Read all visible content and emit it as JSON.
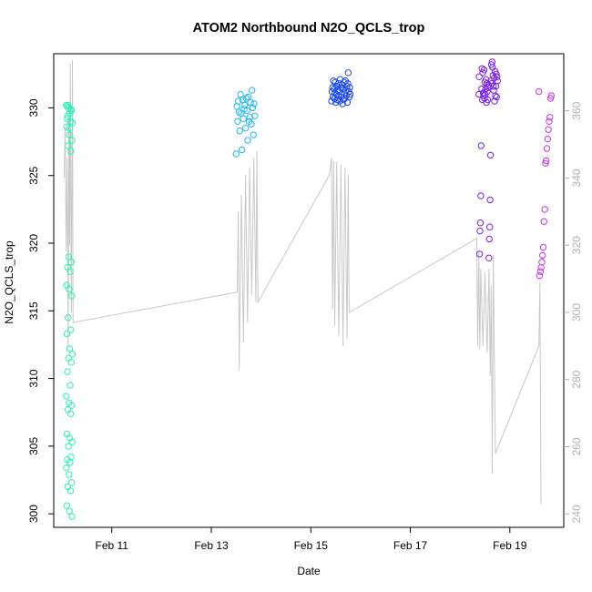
{
  "chart_data": {
    "type": "scatter",
    "title": "ATOM2 Northbound N2O_QCLS_trop",
    "xlabel": "Date",
    "ylabel": "N2O_QCLS_trop",
    "xlim": [
      "2017-02-09T20:00",
      "2017-02-20T02:00"
    ],
    "ylim": [
      299,
      334
    ],
    "y2lim": [
      236,
      377
    ],
    "x_ticks": [
      {
        "label": "Feb 11",
        "date": "2017-02-11"
      },
      {
        "label": "Feb 13",
        "date": "2017-02-13"
      },
      {
        "label": "Feb 15",
        "date": "2017-02-15"
      },
      {
        "label": "Feb 17",
        "date": "2017-02-17"
      },
      {
        "label": "Feb 19",
        "date": "2017-02-19"
      }
    ],
    "y_ticks": [
      300,
      305,
      310,
      315,
      320,
      325,
      330
    ],
    "y2_ticks": [
      240,
      260,
      280,
      300,
      320,
      340,
      360
    ],
    "grid": false,
    "legend": "none",
    "series_scatter": [
      {
        "color": "#2ef0b8",
        "time_range": [
          "2017-02-10T02:00",
          "2017-02-10T05:00"
        ],
        "values": [
          330.2,
          330.0,
          329.8,
          329.4,
          329.0,
          328.6,
          328.0,
          327.6,
          327.2,
          326.8,
          330.1,
          329.6,
          328.9,
          319.0,
          318.6,
          318.2,
          317.9,
          316.9,
          316.6,
          316.1,
          314.5,
          313.6,
          313.3,
          312.2,
          311.8,
          311.5,
          311.2,
          310.5,
          309.5,
          308.7,
          308.2,
          308.0,
          307.7,
          307.4,
          305.9,
          305.6,
          305.3,
          305.0,
          304.2,
          304.0,
          303.8,
          303.4,
          302.9,
          302.3,
          302.0,
          301.7,
          300.6,
          300.2,
          299.8,
          330.2,
          329.9,
          329.2,
          328.5
        ]
      },
      {
        "color": "#1fb8f5",
        "time_range": [
          "2017-02-13T12:00",
          "2017-02-13T21:00"
        ],
        "values": [
          326.6,
          326.9,
          327.6,
          328.0,
          328.3,
          328.5,
          328.8,
          329.0,
          329.2,
          329.0,
          329.4,
          329.6,
          329.8,
          330.0,
          329.7,
          330.2,
          330.4,
          330.1,
          330.6,
          330.8,
          330.3,
          331.0,
          330.7,
          331.3,
          330.5,
          329.9,
          329.3
        ]
      },
      {
        "color": "#1f4af2",
        "time_range": [
          "2017-02-15T10:00",
          "2017-02-15T19:00"
        ],
        "values": [
          330.5,
          331.0,
          331.5,
          330.8,
          331.2,
          332.6,
          331.8,
          330.4,
          331.6,
          330.9,
          331.3,
          332.0,
          330.7,
          331.1,
          331.9,
          330.6,
          331.4,
          330.3,
          331.7,
          331.0,
          330.8,
          331.5,
          332.1,
          330.5,
          331.2,
          331.8,
          330.9,
          331.3,
          330.6,
          331.6,
          331.0,
          330.4,
          331.9,
          331.1,
          330.7,
          331.4,
          332.0,
          330.8,
          331.5,
          331.2
        ]
      },
      {
        "color": "#7a1fef",
        "time_range": [
          "2017-02-18T09:00",
          "2017-02-18T18:00"
        ],
        "values": [
          331.0,
          331.5,
          332.0,
          330.6,
          332.3,
          331.2,
          330.8,
          331.8,
          332.5,
          330.4,
          331.6,
          332.1,
          330.9,
          331.4,
          332.7,
          331.0,
          330.5,
          331.9,
          332.2,
          330.7,
          331.3,
          332.8,
          331.6,
          330.9,
          332.4,
          331.1,
          333.0,
          332.6,
          333.4,
          330.6,
          331.8,
          332.9,
          333.2,
          331.4,
          332.0,
          327.2,
          326.5,
          323.5,
          323.2,
          321.5,
          321.2,
          320.9,
          320.3,
          319.2,
          318.9,
          332.3,
          331.7
        ]
      },
      {
        "color": "#cc33e8",
        "time_range": [
          "2017-02-19T14:00",
          "2017-02-19T20:00"
        ],
        "values": [
          331.2,
          330.9,
          330.7,
          329.3,
          329.0,
          328.4,
          327.7,
          327.0,
          326.1,
          325.9,
          322.5,
          321.6,
          319.7,
          319.1,
          318.6,
          318.2,
          317.9,
          317.6
        ]
      }
    ],
    "series_line_y2": {
      "color": "#c9c9c9",
      "points": [
        [
          "2017-02-10T01:00",
          340
        ],
        [
          "2017-02-10T01:30",
          355
        ],
        [
          "2017-02-10T02:00",
          318
        ],
        [
          "2017-02-10T02:30",
          346
        ],
        [
          "2017-02-10T03:00",
          290
        ],
        [
          "2017-02-10T03:20",
          362
        ],
        [
          "2017-02-10T03:40",
          320
        ],
        [
          "2017-02-10T04:00",
          374
        ],
        [
          "2017-02-10T04:30",
          300
        ],
        [
          "2017-02-10T05:00",
          375
        ],
        [
          "2017-02-10T05:20",
          297
        ],
        [
          "2017-02-13T12:30",
          306
        ],
        [
          "2017-02-13T13:00",
          330
        ],
        [
          "2017-02-13T13:30",
          283
        ],
        [
          "2017-02-13T14:30",
          335
        ],
        [
          "2017-02-13T15:30",
          291
        ],
        [
          "2017-02-13T16:30",
          341
        ],
        [
          "2017-02-13T17:30",
          297
        ],
        [
          "2017-02-13T18:30",
          343
        ],
        [
          "2017-02-13T19:30",
          305
        ],
        [
          "2017-02-13T20:30",
          346
        ],
        [
          "2017-02-13T21:30",
          303
        ],
        [
          "2017-02-13T22:00",
          348
        ],
        [
          "2017-02-13T22:30",
          303
        ],
        [
          "2017-02-15T09:00",
          341
        ],
        [
          "2017-02-15T10:00",
          346
        ],
        [
          "2017-02-15T10:30",
          301
        ],
        [
          "2017-02-15T11:00",
          345
        ],
        [
          "2017-02-15T11:30",
          296
        ],
        [
          "2017-02-15T12:30",
          345
        ],
        [
          "2017-02-15T13:30",
          293
        ],
        [
          "2017-02-15T14:30",
          344
        ],
        [
          "2017-02-15T15:30",
          290
        ],
        [
          "2017-02-15T16:30",
          343
        ],
        [
          "2017-02-15T17:30",
          292
        ],
        [
          "2017-02-15T18:00",
          341
        ],
        [
          "2017-02-15T18:30",
          300
        ],
        [
          "2017-02-18T08:00",
          322
        ],
        [
          "2017-02-18T08:30",
          290
        ],
        [
          "2017-02-18T09:00",
          318
        ],
        [
          "2017-02-18T09:30",
          289
        ],
        [
          "2017-02-18T10:00",
          313
        ],
        [
          "2017-02-18T11:00",
          290
        ],
        [
          "2017-02-18T12:00",
          312
        ],
        [
          "2017-02-18T13:00",
          288
        ],
        [
          "2017-02-18T14:00",
          313
        ],
        [
          "2017-02-18T14:30",
          281
        ],
        [
          "2017-02-18T15:00",
          308
        ],
        [
          "2017-02-18T15:30",
          252
        ],
        [
          "2017-02-18T16:00",
          317
        ],
        [
          "2017-02-18T17:00",
          258
        ],
        [
          "2017-02-19T14:00",
          290
        ],
        [
          "2017-02-19T14:30",
          309
        ],
        [
          "2017-02-19T15:00",
          243
        ]
      ]
    }
  }
}
